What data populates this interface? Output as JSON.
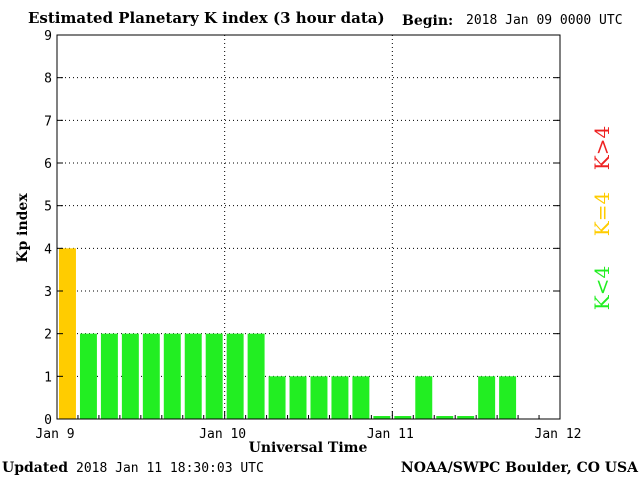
{
  "header": {
    "title": "Estimated Planetary K index (3 hour data)",
    "begin_label": "Begin:",
    "begin_value": "2018 Jan 09 0000 UTC"
  },
  "footer": {
    "updated_label": "Updated",
    "updated_value": "2018 Jan 11 18:30:03 UTC",
    "credit": "NOAA/SWPC Boulder, CO USA"
  },
  "legend": [
    {
      "text": "K<4",
      "color": "#22ee22"
    },
    {
      "text": "K=4",
      "color": "#ffcc00"
    },
    {
      "text": "K>4",
      "color": "#ee2222"
    }
  ],
  "chart_data": {
    "type": "bar",
    "title": "Estimated Planetary K index (3 hour data)",
    "xlabel": "Universal Time",
    "ylabel": "Kp index",
    "ylim": [
      0,
      9
    ],
    "yticks": [
      0,
      1,
      2,
      3,
      4,
      5,
      6,
      7,
      8,
      9
    ],
    "xlim_hours": [
      0,
      72
    ],
    "x_tick_labels": [
      "Jan 9",
      "Jan 10",
      "Jan 11",
      "Jan 12"
    ],
    "bar_interval_hours": 3,
    "grid": true,
    "colors": {
      "below": "#22ee22",
      "equal": "#ffcc00",
      "above": "#ee2222"
    },
    "values": [
      4,
      2,
      2,
      2,
      2,
      2,
      2,
      2,
      2,
      2,
      1,
      1,
      1,
      1,
      1,
      0.07,
      0.07,
      1,
      0.07,
      0.07,
      1,
      1
    ]
  }
}
